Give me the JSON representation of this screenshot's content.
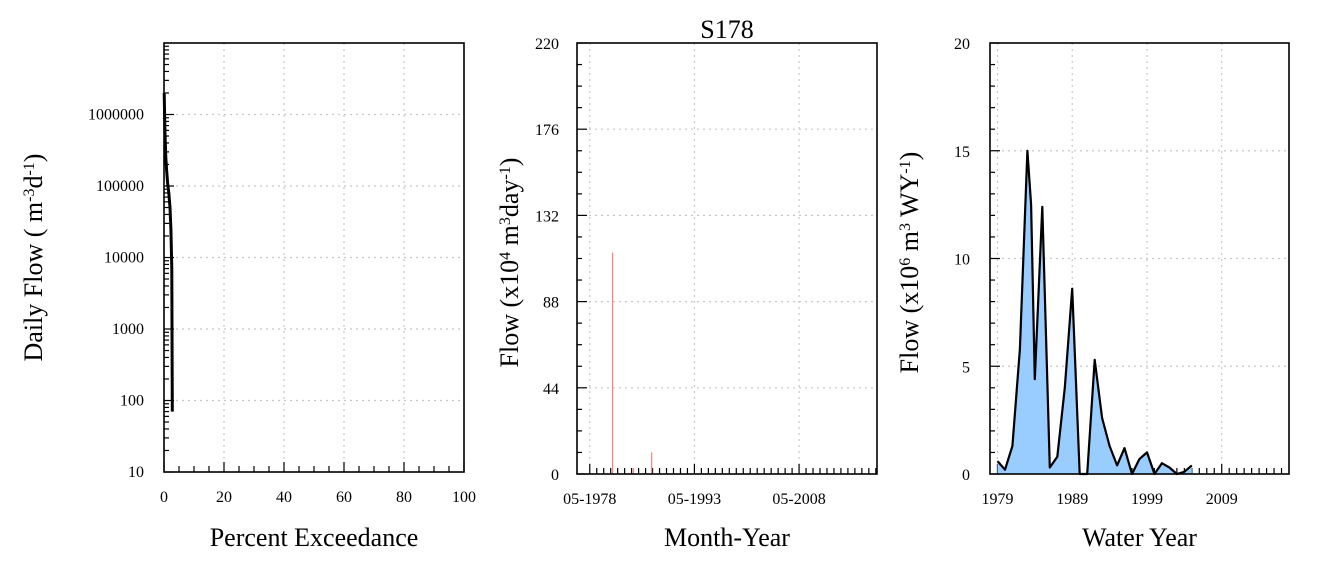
{
  "title": "S178",
  "colors": {
    "area_fill": "#99ccff",
    "bar": "#ff7f7f",
    "line": "#000000"
  },
  "chart_data": [
    {
      "id": "exceedance",
      "type": "line",
      "xlabel": "Percent Exceedance",
      "ylabel": {
        "main": "Daily Flow ( m",
        "sup1": "-3",
        "mid": "d",
        "sup2": "-1",
        "end": ")"
      },
      "xlim": [
        0,
        100
      ],
      "xticks": [
        "0",
        "20",
        "40",
        "60",
        "80",
        "100"
      ],
      "yscale": "log",
      "ylim": [
        10,
        10000000
      ],
      "yticks": [
        "10",
        "100",
        "1000",
        "10000",
        "100000",
        "1000000"
      ],
      "grid": true,
      "x": [
        0.05,
        0.3,
        0.6,
        0.9,
        1.2,
        1.6,
        2.0,
        2.3,
        2.6,
        2.75
      ],
      "y": [
        2000000,
        600000,
        250000,
        160000,
        110000,
        80000,
        50000,
        25000,
        7000,
        70
      ]
    },
    {
      "id": "monthly",
      "type": "bar",
      "xlabel": "Month-Year",
      "ylabel": {
        "main": "Flow (x10",
        "sup1": "4",
        "mid": " m",
        "sup2": "3",
        "end": "day",
        "sup3": "-1",
        "tail": ")"
      },
      "xlim": [
        1976.5,
        2019.5
      ],
      "xticks": [
        "05-1978",
        "05-1993",
        "05-2008"
      ],
      "xtick_values": [
        1978.33,
        1993.33,
        2008.33
      ],
      "ylim": [
        0,
        220
      ],
      "yticks": [
        "0",
        "44",
        "88",
        "132",
        "176",
        "220"
      ],
      "grid": true,
      "x": [
        1981.6,
        1984.6,
        1987.2
      ],
      "values": [
        113,
        3,
        11
      ]
    },
    {
      "id": "annual",
      "type": "area",
      "xlabel": "Water Year",
      "ylabel": {
        "main": "Flow (x10",
        "sup1": "6",
        "mid": " m",
        "sup2": "3",
        "end": " WY",
        "sup3": "-1",
        "tail": ")"
      },
      "xlim": [
        1978,
        2018
      ],
      "xticks": [
        "1979",
        "1989",
        "1999",
        "2009"
      ],
      "xtick_values": [
        1979,
        1989,
        1999,
        2009
      ],
      "ylim": [
        0,
        20
      ],
      "yticks": [
        "0",
        "5",
        "10",
        "15",
        "20"
      ],
      "grid": true,
      "x": [
        1979,
        1980,
        1981,
        1982,
        1983,
        1983.5,
        1984,
        1985,
        1986,
        1987,
        1988,
        1989,
        1990,
        1991,
        1992,
        1993,
        1994,
        1995,
        1996,
        1997,
        1998,
        1999,
        2000,
        2001,
        2002,
        2003,
        2004,
        2005
      ],
      "values": [
        0.6,
        0.2,
        1.3,
        5.8,
        15.0,
        12.5,
        4.4,
        12.4,
        0.3,
        0.8,
        4.0,
        8.6,
        0.0,
        0.0,
        5.3,
        2.6,
        1.3,
        0.4,
        1.2,
        0.0,
        0.7,
        1.0,
        0.0,
        0.5,
        0.3,
        0.0,
        0.1,
        0.4
      ]
    }
  ]
}
